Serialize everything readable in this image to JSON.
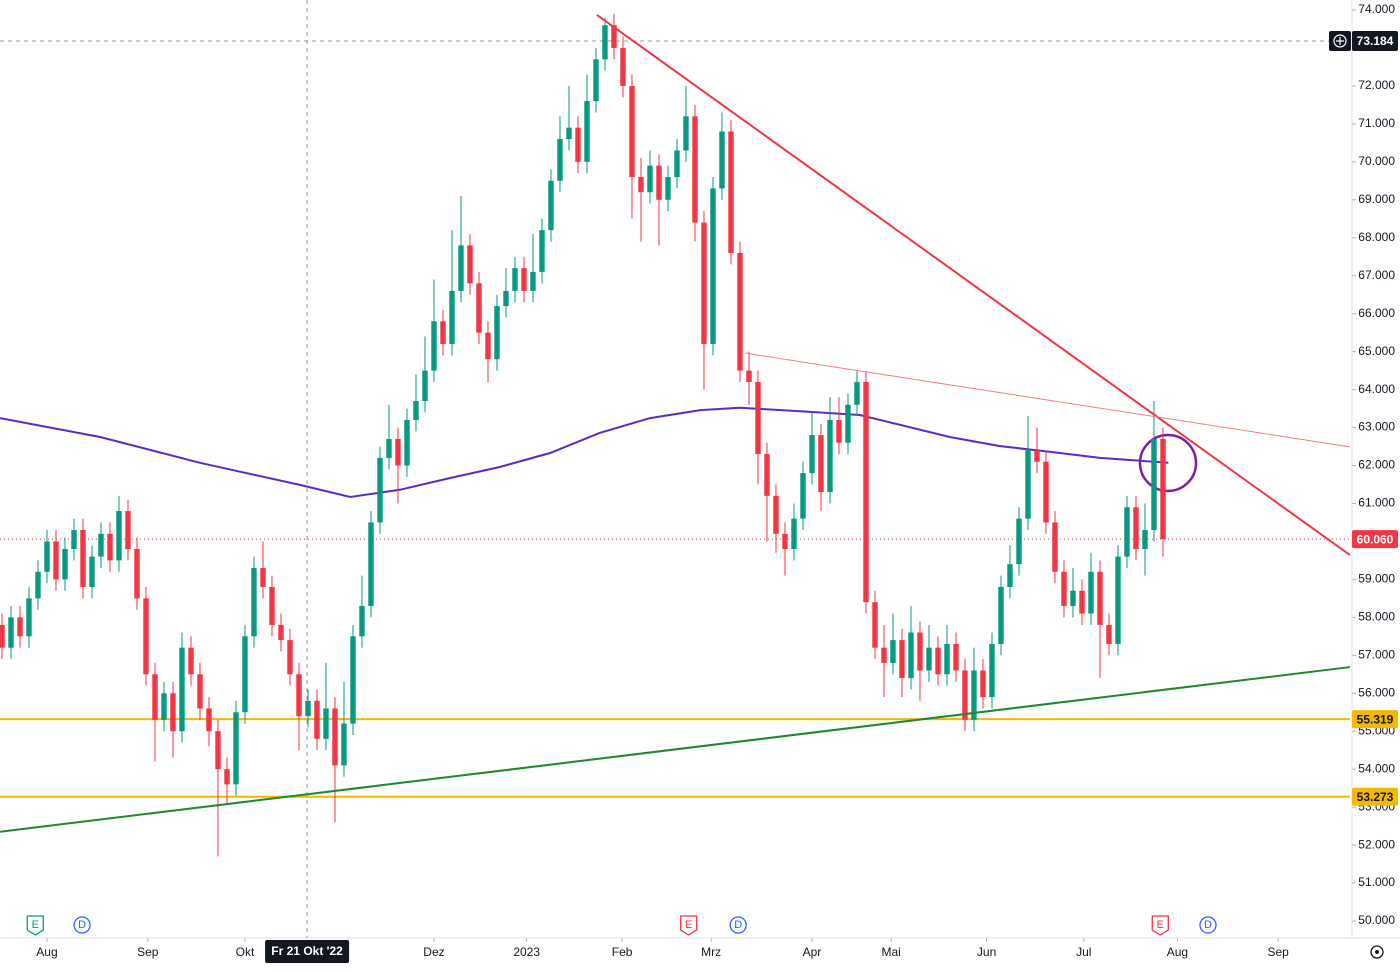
{
  "chart_data": {
    "type": "candlestick",
    "xlim": [
      -0.22,
      149.78
    ],
    "ylim": [
      50,
      74
    ],
    "yticks": [
      {
        "value": 50,
        "label": "50.000"
      },
      {
        "value": 51,
        "label": "51.000"
      },
      {
        "value": 52,
        "label": "52.000"
      },
      {
        "value": 53,
        "label": "53.000"
      },
      {
        "value": 54,
        "label": "54.000"
      },
      {
        "value": 55,
        "label": "55.000"
      },
      {
        "value": 56,
        "label": "56.000"
      },
      {
        "value": 57,
        "label": "57.000"
      },
      {
        "value": 58,
        "label": "58.000"
      },
      {
        "value": 59,
        "label": "59.000"
      },
      {
        "value": 60,
        "label": "60.000"
      },
      {
        "value": 61,
        "label": "61.000"
      },
      {
        "value": 62,
        "label": "62.000"
      },
      {
        "value": 63,
        "label": "63.000"
      },
      {
        "value": 64,
        "label": "64.000"
      },
      {
        "value": 65,
        "label": "65.000"
      },
      {
        "value": 66,
        "label": "66.000"
      },
      {
        "value": 67,
        "label": "67.000"
      },
      {
        "value": 68,
        "label": "68.000"
      },
      {
        "value": 69,
        "label": "69.000"
      },
      {
        "value": 70,
        "label": "70.000"
      },
      {
        "value": 71,
        "label": "71.000"
      },
      {
        "value": 72,
        "label": "72.000"
      },
      {
        "value": 73,
        "label": "73.000"
      },
      {
        "value": 74,
        "label": "74.000"
      }
    ],
    "xticks": [
      {
        "value": 5,
        "label": "Aug"
      },
      {
        "value": 16.2,
        "label": "Sep"
      },
      {
        "value": 27,
        "label": "Okt"
      },
      {
        "value": 48,
        "label": "Dez"
      },
      {
        "value": 58.3,
        "label": "2023"
      },
      {
        "value": 68.9,
        "label": "Feb"
      },
      {
        "value": 78.8,
        "label": "Mrz"
      },
      {
        "value": 90,
        "label": "Apr"
      },
      {
        "value": 98.8,
        "label": "Mai"
      },
      {
        "value": 109.4,
        "label": "Jun"
      },
      {
        "value": 120.2,
        "label": "Jul"
      },
      {
        "value": 130.6,
        "label": "Aug"
      },
      {
        "value": 141.8,
        "label": "Sep"
      }
    ],
    "up_color": "#089981",
    "down_color": "#f23645",
    "ohlc": [
      [
        57.8,
        58.1,
        56.9,
        57.2
      ],
      [
        57.2,
        58.3,
        56.9,
        58
      ],
      [
        58,
        58.3,
        57.2,
        57.5
      ],
      [
        57.5,
        58.8,
        57.2,
        58.5
      ],
      [
        58.5,
        59.5,
        58.2,
        59.2
      ],
      [
        59.2,
        60.3,
        58.9,
        60
      ],
      [
        60,
        60.3,
        58.7,
        59
      ],
      [
        59,
        60.1,
        58.7,
        59.8
      ],
      [
        59.8,
        60.6,
        59.5,
        60.3
      ],
      [
        60.3,
        60.6,
        58.5,
        58.8
      ],
      [
        58.8,
        59.9,
        58.5,
        59.6
      ],
      [
        59.6,
        60.5,
        59.3,
        60.2
      ],
      [
        60.2,
        60.5,
        59.2,
        59.5
      ],
      [
        59.5,
        61.2,
        59.2,
        60.8
      ],
      [
        60.8,
        61.1,
        59.5,
        59.8
      ],
      [
        59.8,
        60.1,
        58.2,
        58.5
      ],
      [
        58.5,
        58.8,
        56.2,
        56.5
      ],
      [
        56.5,
        56.8,
        54.2,
        55.3
      ],
      [
        55.3,
        56.3,
        55,
        56
      ],
      [
        56,
        56.3,
        54.3,
        55
      ],
      [
        55,
        57.6,
        54.7,
        57.2
      ],
      [
        57.2,
        57.5,
        56.2,
        56.5
      ],
      [
        56.5,
        56.8,
        55.3,
        55.6
      ],
      [
        55.6,
        55.9,
        54.6,
        55
      ],
      [
        55,
        55.3,
        51.7,
        54
      ],
      [
        54,
        54.3,
        53.1,
        53.6
      ],
      [
        53.6,
        55.8,
        53.3,
        55.5
      ],
      [
        55.5,
        57.8,
        55.2,
        57.5
      ],
      [
        57.5,
        59.6,
        57.2,
        59.3
      ],
      [
        59.3,
        60,
        58.5,
        58.8
      ],
      [
        58.8,
        59.1,
        57.5,
        57.8
      ],
      [
        57.8,
        58.1,
        57.1,
        57.4
      ],
      [
        57.4,
        57.7,
        56.2,
        56.5
      ],
      [
        56.5,
        56.8,
        54.5,
        55.4
      ],
      [
        55.4,
        56.1,
        55.1,
        55.8
      ],
      [
        55.8,
        56.1,
        54.5,
        54.8
      ],
      [
        54.8,
        56.8,
        54.5,
        55.6
      ],
      [
        55.6,
        55.9,
        52.6,
        54.1
      ],
      [
        54.1,
        56.3,
        53.8,
        55.2
      ],
      [
        55.2,
        57.8,
        54.9,
        57.5
      ],
      [
        57.5,
        59.1,
        57.2,
        58.3
      ],
      [
        58.3,
        60.8,
        58,
        60.5
      ],
      [
        60.5,
        62.5,
        60.2,
        62.2
      ],
      [
        62.2,
        63.6,
        61.9,
        62.7
      ],
      [
        62.7,
        63,
        61,
        62
      ],
      [
        62,
        63.5,
        61.7,
        63.2
      ],
      [
        63.2,
        64.4,
        62.9,
        63.7
      ],
      [
        63.7,
        65.4,
        63.4,
        64.5
      ],
      [
        64.5,
        66.9,
        64.2,
        65.8
      ],
      [
        65.8,
        66.1,
        64.9,
        65.2
      ],
      [
        65.2,
        68.2,
        64.9,
        66.6
      ],
      [
        66.6,
        69.1,
        66.3,
        67.8
      ],
      [
        67.8,
        68.1,
        66.5,
        66.8
      ],
      [
        66.8,
        67.1,
        65.2,
        65.5
      ],
      [
        65.5,
        65.8,
        64.2,
        64.8
      ],
      [
        64.8,
        66.5,
        64.5,
        66.2
      ],
      [
        66.2,
        67.2,
        65.9,
        66.6
      ],
      [
        66.6,
        67.5,
        66.3,
        67.2
      ],
      [
        67.2,
        67.5,
        66.3,
        66.6
      ],
      [
        66.6,
        68.1,
        66.3,
        67.1
      ],
      [
        67.1,
        68.5,
        66.8,
        68.2
      ],
      [
        68.2,
        69.8,
        67.9,
        69.5
      ],
      [
        69.5,
        71.2,
        69.2,
        70.6
      ],
      [
        70.6,
        72,
        70.3,
        70.9
      ],
      [
        70.9,
        71.2,
        69.7,
        70
      ],
      [
        70,
        72.3,
        69.7,
        71.6
      ],
      [
        71.6,
        73,
        71.3,
        72.7
      ],
      [
        72.7,
        73.8,
        72.4,
        73.6
      ],
      [
        73.6,
        73.9,
        72.7,
        73
      ],
      [
        73,
        73.3,
        71.7,
        72
      ],
      [
        72,
        72.3,
        68.5,
        69.6
      ],
      [
        69.6,
        70.1,
        67.9,
        69.2
      ],
      [
        69.2,
        70.3,
        68.9,
        69.9
      ],
      [
        69.9,
        70.2,
        67.8,
        69
      ],
      [
        69,
        69.9,
        68.7,
        69.6
      ],
      [
        69.6,
        70.6,
        69.3,
        70.3
      ],
      [
        70.3,
        72,
        70,
        71.2
      ],
      [
        71.2,
        71.5,
        67.9,
        68.4
      ],
      [
        68.4,
        68.7,
        64,
        65.2
      ],
      [
        65.2,
        69.6,
        64.9,
        69.3
      ],
      [
        69.3,
        71.3,
        69,
        70.8
      ],
      [
        70.8,
        71.1,
        67.3,
        67.6
      ],
      [
        67.6,
        67.9,
        64.2,
        64.5
      ],
      [
        64.5,
        65,
        63.6,
        64.2
      ],
      [
        64.2,
        64.5,
        61.5,
        62.3
      ],
      [
        62.3,
        62.6,
        60,
        61.2
      ],
      [
        61.2,
        61.5,
        59.7,
        60.2
      ],
      [
        60.2,
        60.5,
        59.1,
        59.8
      ],
      [
        59.8,
        61,
        59.5,
        60.6
      ],
      [
        60.6,
        62.1,
        60.3,
        61.8
      ],
      [
        61.8,
        63.4,
        61.5,
        62.8
      ],
      [
        62.8,
        63.1,
        60.8,
        61.3
      ],
      [
        61.3,
        63.8,
        61,
        63.2
      ],
      [
        63.2,
        63.8,
        62.3,
        62.6
      ],
      [
        62.6,
        63.9,
        62.3,
        63.6
      ],
      [
        63.6,
        64.5,
        63.3,
        64.2
      ],
      [
        64.2,
        64.5,
        58.1,
        58.4
      ],
      [
        58.4,
        58.7,
        56.9,
        57.2
      ],
      [
        57.2,
        57.8,
        55.9,
        56.8
      ],
      [
        56.8,
        58.1,
        56.5,
        57.4
      ],
      [
        57.4,
        57.7,
        55.9,
        56.4
      ],
      [
        56.4,
        58.3,
        56.1,
        57.6
      ],
      [
        57.6,
        57.9,
        55.8,
        56.6
      ],
      [
        56.6,
        57.8,
        56.3,
        57.2
      ],
      [
        57.2,
        57.5,
        56.2,
        56.5
      ],
      [
        56.5,
        57.8,
        56.2,
        57.3
      ],
      [
        57.3,
        57.6,
        56.3,
        56.6
      ],
      [
        56.6,
        56.9,
        55,
        55.3
      ],
      [
        55.3,
        57.2,
        55,
        56.6
      ],
      [
        56.6,
        56.9,
        55.6,
        55.9
      ],
      [
        55.9,
        57.6,
        55.6,
        57.3
      ],
      [
        57.3,
        59.1,
        57,
        58.8
      ],
      [
        58.8,
        59.9,
        58.5,
        59.4
      ],
      [
        59.4,
        60.9,
        59.1,
        60.6
      ],
      [
        60.6,
        63.3,
        60.3,
        62.4
      ],
      [
        62.4,
        63,
        61.8,
        62.1
      ],
      [
        62.1,
        62.4,
        60.2,
        60.5
      ],
      [
        60.5,
        60.8,
        58.9,
        59.2
      ],
      [
        59.2,
        59.5,
        58,
        58.3
      ],
      [
        58.3,
        59.3,
        58,
        58.7
      ],
      [
        58.7,
        59,
        57.8,
        58.1
      ],
      [
        58.1,
        59.7,
        57.8,
        59.2
      ],
      [
        59.2,
        59.5,
        56.4,
        57.8
      ],
      [
        57.8,
        58.1,
        57,
        57.3
      ],
      [
        57.3,
        59.9,
        57,
        59.6
      ],
      [
        59.6,
        61.2,
        59.3,
        60.9
      ],
      [
        60.9,
        61.2,
        59.5,
        59.8
      ],
      [
        59.8,
        61,
        59.1,
        60.3
      ],
      [
        60.3,
        63.7,
        60,
        62.7
      ],
      [
        62.7,
        63,
        59.6,
        60.06
      ]
    ],
    "moving_average": {
      "color": "#5b2bc4",
      "x": [
        -0.22,
        10.9,
        22,
        33.1,
        38.7,
        44.2,
        49.8,
        55.3,
        60.9,
        66.4,
        72,
        77.6,
        82,
        88.7,
        95.3,
        99.8,
        105.3,
        110.9,
        116.4,
        122,
        129.6
      ],
      "values": [
        63.25,
        62.75,
        62.07,
        61.49,
        61.17,
        61.36,
        61.67,
        61.96,
        62.33,
        62.86,
        63.25,
        63.46,
        63.52,
        63.43,
        63.33,
        63.07,
        62.75,
        62.51,
        62.36,
        62.2,
        62.07
      ]
    },
    "trendlines": [
      {
        "x": [
          66.1,
          149.78
        ],
        "y": [
          73.87,
          59.64
        ],
        "color": "#f23645",
        "width": 2
      },
      {
        "x": [
          82.6,
          149.78
        ],
        "y": [
          64.96,
          62.49
        ],
        "color": "#f47c7c",
        "width": 1
      },
      {
        "x": [
          -0.22,
          149.78
        ],
        "y": [
          52.35,
          56.69
        ],
        "color": "#1e8a2e",
        "width": 2
      }
    ],
    "levels": [
      {
        "value": 55.319,
        "color": "#f5b800",
        "text_color": "#131722",
        "style": "solid"
      },
      {
        "value": 53.273,
        "color": "#f5b800",
        "text_color": "#131722",
        "style": "solid"
      },
      {
        "value": 60.06,
        "label": "60.060",
        "color": "#f23645",
        "text_color": "#ffffff",
        "style": "dotted"
      }
    ],
    "crosshair": {
      "x": 33.9,
      "x_label": "Fr 21 Okt '22",
      "y": 73.184
    },
    "events": [
      {
        "x": 3.7,
        "label": "E",
        "color": "#089981"
      },
      {
        "x": 8.9,
        "label": "D",
        "color": "#2962ff"
      },
      {
        "x": 76.3,
        "label": "E",
        "color": "#f23645"
      },
      {
        "x": 81.8,
        "label": "D",
        "color": "#2962ff"
      },
      {
        "x": 128.7,
        "label": "E",
        "color": "#f23645"
      },
      {
        "x": 134,
        "label": "D",
        "color": "#2962ff"
      }
    ]
  }
}
